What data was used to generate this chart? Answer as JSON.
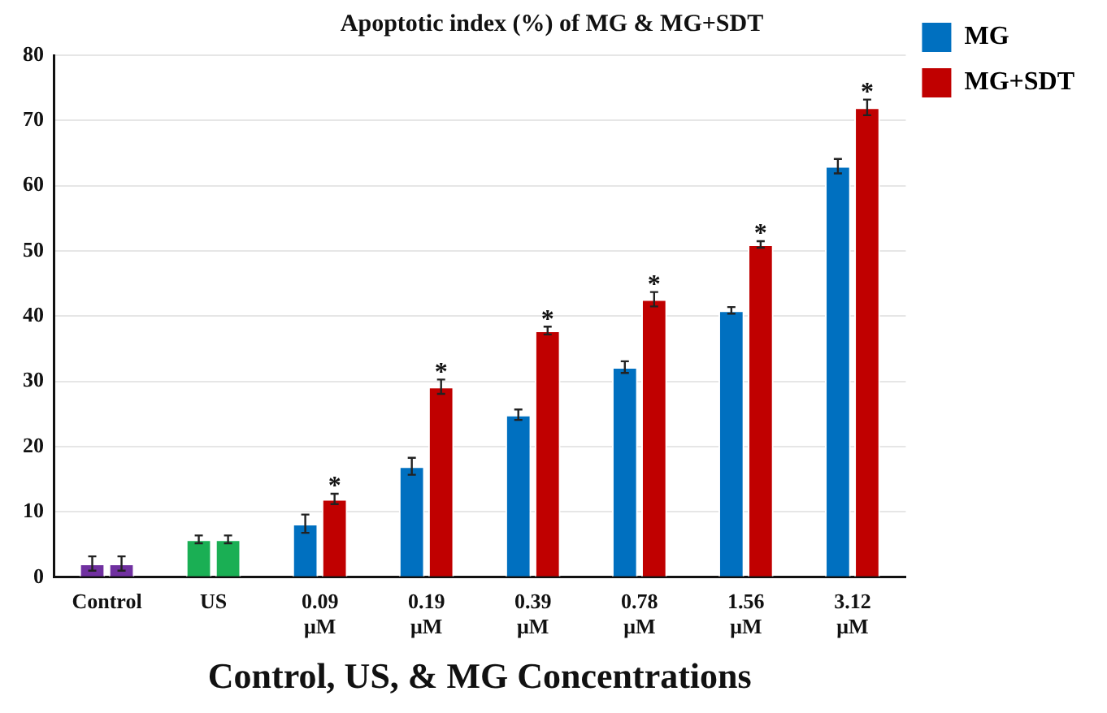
{
  "chart_data": {
    "type": "bar",
    "title": "Apoptotic index (%) of MG & MG+SDT",
    "xlabel": "Control, US, & MG Concentrations",
    "categories": [
      "Control",
      "US",
      "0.09 μM",
      "0.19 μM",
      "0.39 μM",
      "0.78 μM",
      "1.56 μM",
      "3.12 μM"
    ],
    "series": [
      {
        "name": "MG",
        "color": "#0070c0",
        "colors": [
          "#7030a0",
          "#1aaf54",
          "#0070c0",
          "#0070c0",
          "#0070c0",
          "#0070c0",
          "#0070c0",
          "#0070c0"
        ],
        "values": [
          2.1,
          5.8,
          8.2,
          17.0,
          24.9,
          32.2,
          40.9,
          63.0
        ],
        "errors": [
          1.1,
          0.6,
          1.4,
          1.3,
          0.8,
          0.9,
          0.5,
          1.1
        ]
      },
      {
        "name": "MG+SDT",
        "color": "#c00000",
        "colors": [
          "#7030a0",
          "#1aaf54",
          "#c00000",
          "#c00000",
          "#c00000",
          "#c00000",
          "#c00000",
          "#c00000"
        ],
        "values": [
          2.1,
          5.8,
          12.0,
          29.2,
          37.8,
          42.6,
          51.0,
          72.0
        ],
        "errors": [
          1.1,
          0.6,
          0.8,
          1.1,
          0.6,
          1.1,
          0.5,
          1.2
        ]
      }
    ],
    "ylim": [
      0,
      80
    ],
    "yticks": [
      0,
      10,
      20,
      30,
      40,
      50,
      60,
      70,
      80
    ],
    "grid": "y",
    "legend": "top right",
    "annotations": [
      {
        "text": "*",
        "x": "0.09 μM",
        "y": 12.0
      },
      {
        "text": "*",
        "x": "0.19 μM",
        "y": 29.2
      },
      {
        "text": "*",
        "x": "0.39 μM",
        "y": 37.8
      },
      {
        "text": "*",
        "x": "0.78 μM",
        "y": 42.6
      },
      {
        "text": "*",
        "x": "1.56 μM",
        "y": 51.0
      },
      {
        "text": "*",
        "x": "3.12 μM",
        "y": 72.0
      }
    ]
  }
}
